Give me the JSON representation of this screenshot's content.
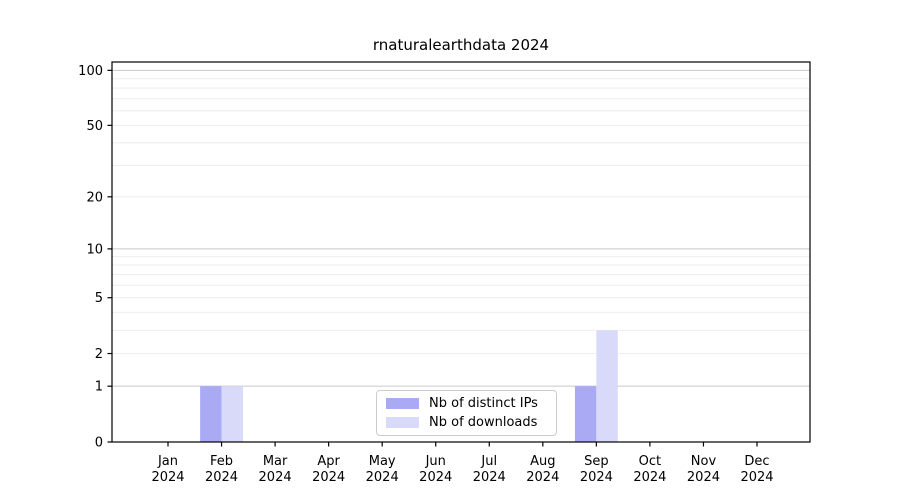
{
  "chart_data": {
    "type": "bar",
    "title": "rnaturalearthdata 2024",
    "categories": [
      "Jan",
      "Feb",
      "Mar",
      "Apr",
      "May",
      "Jun",
      "Jul",
      "Aug",
      "Sep",
      "Oct",
      "Nov",
      "Dec"
    ],
    "x_year_label": "2024",
    "series": [
      {
        "name": "Nb of distinct IPs",
        "key": "distinct-ips",
        "color": "#a9a9f4",
        "values": [
          0,
          1,
          0,
          0,
          0,
          0,
          0,
          0,
          1,
          0,
          0,
          0
        ]
      },
      {
        "name": "Nb of downloads",
        "key": "downloads",
        "color": "#d9d9f9",
        "values": [
          0,
          1,
          0,
          0,
          0,
          0,
          0,
          0,
          3,
          0,
          0,
          0
        ]
      }
    ],
    "yscale": "log1p",
    "ylim": [
      0,
      111
    ],
    "y_tick_labels": [
      0,
      1,
      2,
      5,
      10,
      20,
      50,
      100
    ],
    "y_major_gridlines": [
      1,
      10,
      100
    ],
    "y_minor_gridlines": [
      2,
      3,
      4,
      5,
      6,
      7,
      8,
      9,
      20,
      30,
      40,
      50,
      60,
      70,
      80,
      90
    ],
    "grid": true,
    "legend_position": "lower center",
    "colors": {
      "axis": "#000000",
      "text": "#000000",
      "major_grid": "#c9c9c9",
      "minor_grid": "#eeeeee",
      "legend_border": "#cccccc",
      "background": "#ffffff"
    }
  }
}
